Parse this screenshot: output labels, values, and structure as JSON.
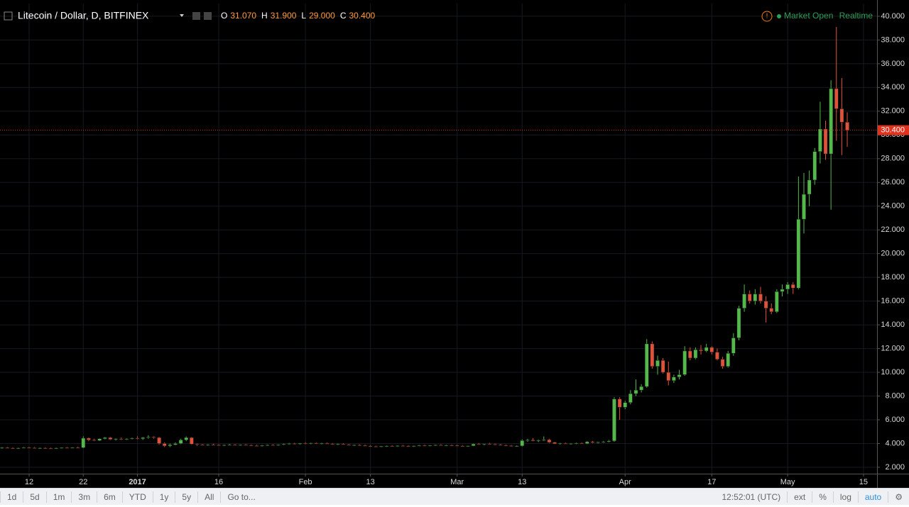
{
  "header": {
    "symbol": "Litecoin / Dollar, D, BITFINEX",
    "ohlc": [
      {
        "label": "O",
        "value": "31.070"
      },
      {
        "label": "H",
        "value": "31.900"
      },
      {
        "label": "L",
        "value": "29.000"
      },
      {
        "label": "C",
        "value": "30.400"
      }
    ],
    "status": "Market Open",
    "mode": "Realtime"
  },
  "toolbar": {
    "ranges": [
      "1d",
      "5d",
      "1m",
      "3m",
      "6m",
      "YTD",
      "1y",
      "5y",
      "All"
    ],
    "goto": "Go to...",
    "time": "12:52:01 (UTC)",
    "options": [
      "ext",
      "%",
      "log",
      "auto"
    ]
  },
  "chart_data": {
    "type": "candlestick",
    "up_color": "#53b94b",
    "down_color": "#e0533b",
    "grid": true,
    "log_scale": false,
    "xlim": [
      -0.37,
      161.5
    ],
    "ylim": [
      1.46,
      41.07
    ],
    "xticks": [
      {
        "value": 5,
        "label": "12"
      },
      {
        "value": 15,
        "label": "22"
      },
      {
        "value": 25,
        "label": "2017"
      },
      {
        "value": 40,
        "label": "16"
      },
      {
        "value": 56,
        "label": "Feb"
      },
      {
        "value": 68,
        "label": "13"
      },
      {
        "value": 84,
        "label": "Mar"
      },
      {
        "value": 96,
        "label": "13"
      },
      {
        "value": 115,
        "label": "Apr"
      },
      {
        "value": 131,
        "label": "17"
      },
      {
        "value": 145,
        "label": "May"
      },
      {
        "value": 159,
        "label": "15"
      }
    ],
    "yticks": [
      {
        "value": 2,
        "label": "2.000"
      },
      {
        "value": 4,
        "label": "4.000"
      },
      {
        "value": 6,
        "label": "6.000"
      },
      {
        "value": 8,
        "label": "8.000"
      },
      {
        "value": 10,
        "label": "10.000"
      },
      {
        "value": 12,
        "label": "12.000"
      },
      {
        "value": 14,
        "label": "14.000"
      },
      {
        "value": 16,
        "label": "16.000"
      },
      {
        "value": 18,
        "label": "18.000"
      },
      {
        "value": 20,
        "label": "20.000"
      },
      {
        "value": 22,
        "label": "22.000"
      },
      {
        "value": 24,
        "label": "24.000"
      },
      {
        "value": 26,
        "label": "26.000"
      },
      {
        "value": 28,
        "label": "28.000"
      },
      {
        "value": 30,
        "label": "30.000"
      },
      {
        "value": 32,
        "label": "32.000"
      },
      {
        "value": 34,
        "label": "34.000"
      },
      {
        "value": 36,
        "label": "36.000"
      },
      {
        "value": 38,
        "label": "38.000"
      },
      {
        "value": 40,
        "label": "40.000"
      }
    ],
    "last_price": {
      "value": 30.4,
      "label": "30.400",
      "color": "#e0331f"
    },
    "ohlc": [
      [
        3.6,
        3.7,
        3.55,
        3.65
      ],
      [
        3.65,
        3.7,
        3.58,
        3.62
      ],
      [
        3.62,
        3.68,
        3.55,
        3.6
      ],
      [
        3.6,
        3.66,
        3.54,
        3.63
      ],
      [
        3.63,
        3.7,
        3.58,
        3.66
      ],
      [
        3.66,
        3.72,
        3.6,
        3.64
      ],
      [
        3.64,
        3.7,
        3.58,
        3.61
      ],
      [
        3.61,
        3.67,
        3.55,
        3.63
      ],
      [
        3.63,
        3.69,
        3.58,
        3.6
      ],
      [
        3.6,
        3.65,
        3.52,
        3.58
      ],
      [
        3.58,
        3.66,
        3.54,
        3.62
      ],
      [
        3.62,
        3.68,
        3.57,
        3.65
      ],
      [
        3.65,
        3.7,
        3.6,
        3.63
      ],
      [
        3.63,
        3.69,
        3.58,
        3.66
      ],
      [
        3.66,
        3.72,
        3.6,
        3.65
      ],
      [
        3.65,
        4.6,
        3.6,
        4.45
      ],
      [
        4.45,
        4.5,
        4.2,
        4.3
      ],
      [
        4.3,
        4.4,
        4.2,
        4.25
      ],
      [
        4.25,
        4.45,
        4.2,
        4.4
      ],
      [
        4.4,
        4.55,
        4.35,
        4.5
      ],
      [
        4.5,
        4.55,
        4.3,
        4.35
      ],
      [
        4.35,
        4.45,
        4.25,
        4.4
      ],
      [
        4.4,
        4.5,
        4.3,
        4.35
      ],
      [
        4.35,
        4.45,
        4.3,
        4.4
      ],
      [
        4.4,
        4.5,
        4.35,
        4.45
      ],
      [
        4.45,
        4.6,
        4.35,
        4.4
      ],
      [
        4.4,
        4.55,
        4.3,
        4.5
      ],
      [
        4.5,
        4.7,
        4.4,
        4.55
      ],
      [
        4.55,
        4.6,
        4.4,
        4.5
      ],
      [
        4.5,
        4.55,
        3.9,
        4.0
      ],
      [
        4.0,
        4.1,
        3.7,
        3.8
      ],
      [
        3.8,
        4.0,
        3.7,
        3.9
      ],
      [
        3.9,
        4.1,
        3.85,
        4.0
      ],
      [
        4.0,
        4.4,
        3.95,
        4.3
      ],
      [
        4.3,
        4.6,
        4.2,
        4.5
      ],
      [
        4.5,
        4.55,
        3.9,
        3.95
      ],
      [
        3.95,
        4.0,
        3.8,
        3.9
      ],
      [
        3.9,
        3.96,
        3.82,
        3.86
      ],
      [
        3.86,
        3.94,
        3.8,
        3.9
      ],
      [
        3.9,
        3.98,
        3.84,
        3.88
      ],
      [
        3.88,
        3.95,
        3.8,
        3.85
      ],
      [
        3.85,
        3.92,
        3.78,
        3.88
      ],
      [
        3.88,
        3.96,
        3.82,
        3.9
      ],
      [
        3.9,
        3.95,
        3.83,
        3.86
      ],
      [
        3.86,
        3.92,
        3.8,
        3.89
      ],
      [
        3.89,
        3.95,
        3.84,
        3.87
      ],
      [
        3.87,
        3.93,
        3.78,
        3.82
      ],
      [
        3.82,
        3.9,
        3.76,
        3.8
      ],
      [
        3.8,
        3.88,
        3.74,
        3.84
      ],
      [
        3.84,
        3.92,
        3.8,
        3.88
      ],
      [
        3.88,
        3.95,
        3.82,
        3.85
      ],
      [
        3.85,
        3.93,
        3.8,
        3.9
      ],
      [
        3.9,
        4.0,
        3.86,
        3.96
      ],
      [
        3.96,
        4.05,
        3.9,
        4.0
      ],
      [
        4.0,
        4.06,
        3.92,
        3.95
      ],
      [
        3.95,
        4.04,
        3.9,
        4.02
      ],
      [
        4.02,
        4.1,
        3.96,
        4.0
      ],
      [
        4.0,
        4.08,
        3.94,
        4.04
      ],
      [
        4.04,
        4.1,
        3.96,
        3.98
      ],
      [
        3.98,
        4.06,
        3.92,
        4.01
      ],
      [
        4.01,
        4.08,
        3.95,
        3.97
      ],
      [
        3.97,
        4.04,
        3.9,
        3.93
      ],
      [
        3.93,
        4.0,
        3.86,
        3.96
      ],
      [
        3.96,
        4.02,
        3.88,
        3.9
      ],
      [
        3.9,
        3.96,
        3.82,
        3.85
      ],
      [
        3.85,
        3.92,
        3.8,
        3.88
      ],
      [
        3.88,
        3.94,
        3.8,
        3.83
      ],
      [
        3.83,
        3.9,
        3.76,
        3.79
      ],
      [
        3.79,
        3.86,
        3.72,
        3.76
      ],
      [
        3.76,
        3.82,
        3.7,
        3.74
      ],
      [
        3.74,
        3.8,
        3.68,
        3.77
      ],
      [
        3.77,
        3.84,
        3.72,
        3.8
      ],
      [
        3.8,
        3.86,
        3.74,
        3.78
      ],
      [
        3.78,
        3.85,
        3.72,
        3.82
      ],
      [
        3.82,
        3.88,
        3.76,
        3.8
      ],
      [
        3.8,
        3.86,
        3.73,
        3.77
      ],
      [
        3.77,
        3.84,
        3.72,
        3.81
      ],
      [
        3.81,
        3.88,
        3.76,
        3.84
      ],
      [
        3.84,
        3.9,
        3.78,
        3.82
      ],
      [
        3.82,
        3.88,
        3.76,
        3.85
      ],
      [
        3.85,
        3.92,
        3.8,
        3.88
      ],
      [
        3.88,
        3.94,
        3.82,
        3.84
      ],
      [
        3.84,
        3.9,
        3.78,
        3.86
      ],
      [
        3.86,
        3.92,
        3.8,
        3.83
      ],
      [
        3.83,
        3.9,
        3.76,
        3.8
      ],
      [
        3.8,
        3.86,
        3.74,
        3.78
      ],
      [
        3.78,
        3.84,
        3.72,
        3.81
      ],
      [
        3.81,
        4.0,
        3.78,
        3.96
      ],
      [
        3.96,
        4.04,
        3.88,
        3.92
      ],
      [
        3.92,
        4.0,
        3.86,
        3.98
      ],
      [
        3.98,
        4.06,
        3.9,
        3.94
      ],
      [
        3.94,
        4.0,
        3.86,
        3.9
      ],
      [
        3.9,
        3.96,
        3.82,
        3.86
      ],
      [
        3.86,
        3.92,
        3.78,
        3.82
      ],
      [
        3.82,
        3.88,
        3.74,
        3.78
      ],
      [
        3.78,
        3.85,
        3.72,
        3.8
      ],
      [
        3.8,
        4.35,
        3.75,
        4.25
      ],
      [
        4.25,
        4.4,
        4.15,
        4.3
      ],
      [
        4.3,
        4.45,
        4.2,
        4.22
      ],
      [
        4.22,
        4.35,
        4.12,
        4.28
      ],
      [
        4.28,
        4.6,
        4.2,
        4.32
      ],
      [
        4.32,
        4.4,
        4.05,
        4.1
      ],
      [
        4.1,
        4.15,
        3.95,
        3.98
      ],
      [
        3.98,
        4.06,
        3.9,
        4.02
      ],
      [
        4.02,
        4.08,
        3.94,
        3.96
      ],
      [
        3.96,
        4.04,
        3.9,
        4.0
      ],
      [
        4.0,
        4.08,
        3.94,
        4.03
      ],
      [
        4.03,
        4.1,
        3.96,
        3.99
      ],
      [
        3.99,
        4.2,
        3.95,
        4.15
      ],
      [
        4.15,
        4.22,
        4.02,
        4.08
      ],
      [
        4.08,
        4.16,
        4.0,
        4.12
      ],
      [
        4.12,
        4.22,
        4.06,
        4.15
      ],
      [
        4.15,
        4.3,
        4.1,
        4.22
      ],
      [
        4.22,
        7.9,
        4.15,
        7.75
      ],
      [
        7.75,
        7.9,
        6.0,
        7.05
      ],
      [
        7.05,
        7.6,
        6.9,
        7.45
      ],
      [
        7.45,
        8.5,
        7.3,
        8.2
      ],
      [
        8.2,
        9.4,
        8.0,
        8.5
      ],
      [
        8.5,
        9.0,
        8.3,
        8.8
      ],
      [
        8.8,
        12.8,
        8.7,
        12.4
      ],
      [
        12.4,
        12.6,
        10.3,
        10.5
      ],
      [
        10.5,
        11.4,
        9.8,
        11.0
      ],
      [
        11.0,
        11.2,
        9.9,
        10.0
      ],
      [
        10.0,
        10.9,
        8.9,
        9.3
      ],
      [
        9.3,
        9.8,
        9.1,
        9.6
      ],
      [
        9.6,
        10.2,
        9.4,
        9.8
      ],
      [
        9.8,
        12.2,
        9.7,
        11.8
      ],
      [
        11.8,
        12.1,
        11.0,
        11.2
      ],
      [
        11.2,
        12.1,
        11.1,
        11.9
      ],
      [
        11.9,
        12.3,
        11.5,
        11.8
      ],
      [
        11.8,
        12.4,
        11.7,
        12.1
      ],
      [
        12.1,
        12.2,
        11.5,
        11.7
      ],
      [
        11.7,
        12.0,
        11.0,
        11.1
      ],
      [
        11.1,
        11.3,
        10.3,
        10.5
      ],
      [
        10.5,
        11.8,
        10.4,
        11.6
      ],
      [
        11.6,
        13.3,
        11.4,
        12.9
      ],
      [
        12.9,
        15.6,
        12.7,
        15.4
      ],
      [
        15.4,
        17.4,
        15.1,
        16.6
      ],
      [
        16.6,
        16.9,
        15.8,
        16.0
      ],
      [
        16.0,
        17.0,
        15.7,
        16.6
      ],
      [
        16.6,
        17.2,
        15.8,
        16.0
      ],
      [
        16.0,
        16.4,
        14.2,
        15.4
      ],
      [
        15.4,
        15.8,
        14.9,
        15.1
      ],
      [
        15.1,
        17.0,
        15.0,
        16.8
      ],
      [
        16.8,
        17.4,
        16.4,
        17.0
      ],
      [
        17.0,
        17.6,
        16.6,
        17.4
      ],
      [
        17.4,
        17.6,
        16.6,
        17.1
      ],
      [
        17.1,
        26.5,
        17.0,
        22.9
      ],
      [
        22.9,
        26.8,
        21.7,
        25.0
      ],
      [
        25.0,
        27.0,
        24.0,
        26.2
      ],
      [
        26.2,
        28.9,
        25.8,
        28.6
      ],
      [
        28.6,
        32.8,
        27.6,
        30.5
      ],
      [
        30.5,
        31.2,
        27.9,
        28.4
      ],
      [
        28.4,
        34.6,
        23.7,
        33.9
      ],
      [
        33.9,
        39.1,
        29.5,
        32.2
      ],
      [
        32.2,
        34.8,
        28.3,
        31.07
      ],
      [
        31.07,
        31.9,
        29.0,
        30.4
      ]
    ]
  }
}
